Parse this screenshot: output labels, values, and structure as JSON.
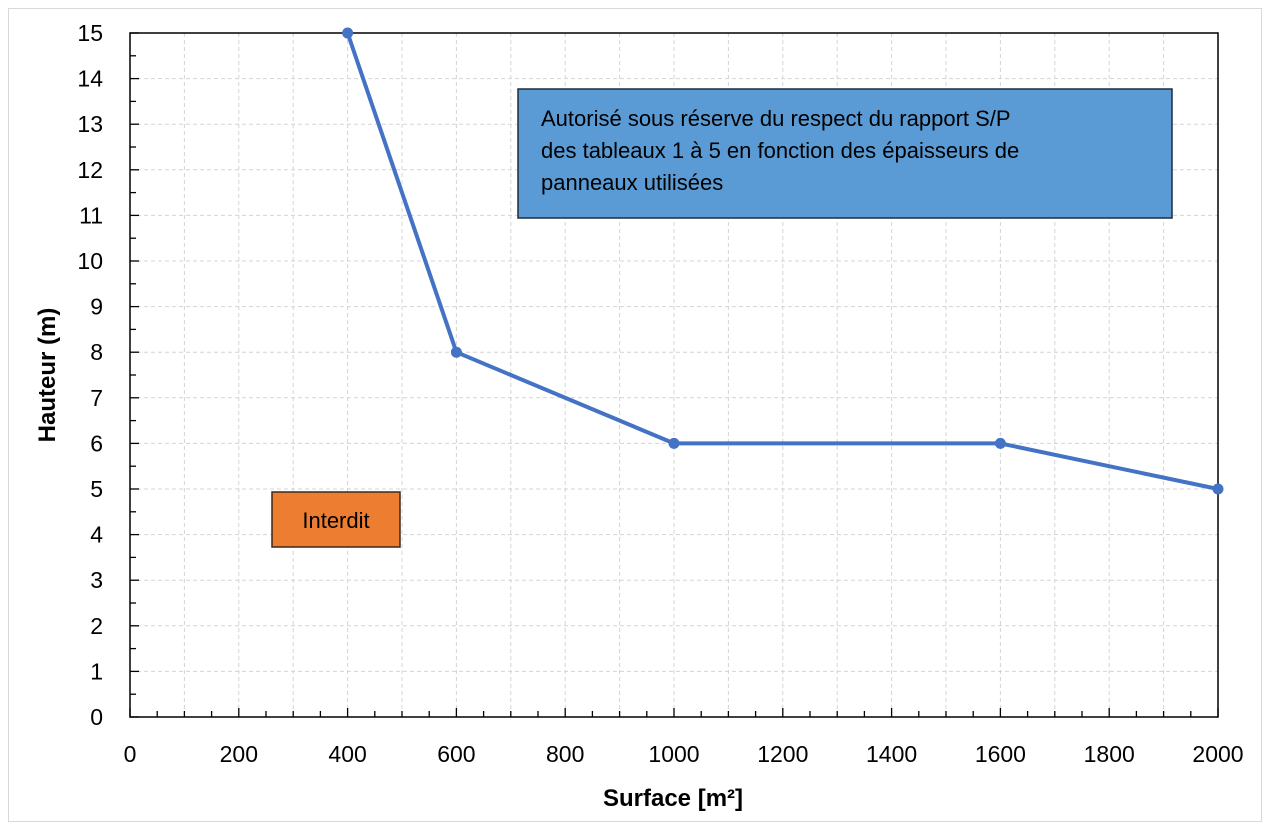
{
  "chart_data": {
    "type": "line",
    "xlabel": "Surface [m²]",
    "ylabel": "Hauteur (m)",
    "xlim": [
      0,
      2000
    ],
    "ylim": [
      0,
      15
    ],
    "x_ticks": [
      0,
      200,
      400,
      600,
      800,
      1000,
      1200,
      1400,
      1600,
      1800,
      2000
    ],
    "y_ticks": [
      0,
      1,
      2,
      3,
      4,
      5,
      6,
      7,
      8,
      9,
      10,
      11,
      12,
      13,
      14,
      15
    ],
    "grid": true,
    "series": [
      {
        "x": [
          400,
          600,
          1000,
          1600,
          2000
        ],
        "y": [
          15,
          8,
          6,
          6,
          5
        ],
        "color": "#4472c4"
      }
    ],
    "annotations": [
      {
        "id": "allowed",
        "lines": [
          "Autorisé sous réserve du respect du rapport S/P",
          "des tableaux 1 à 5 en fonction des épaisseurs de",
          "panneaux utilisées"
        ],
        "fill": "#5b9bd5"
      },
      {
        "id": "forbidden",
        "lines": [
          "Interdit"
        ],
        "fill": "#ed7d31"
      }
    ]
  }
}
